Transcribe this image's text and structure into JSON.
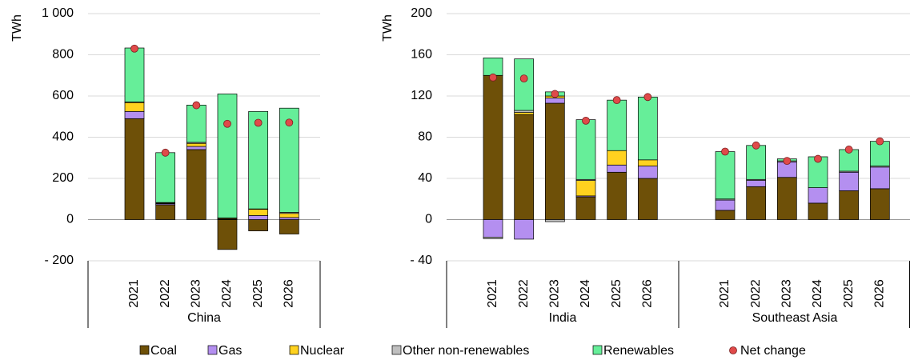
{
  "chart_data": [
    {
      "type": "bar",
      "stacked": true,
      "y_label": "TWh",
      "ylim": [
        -200,
        1000
      ],
      "yticks": [
        {
          "value": -200,
          "label": "- 200"
        },
        0,
        200,
        400,
        600,
        800,
        {
          "value": 1000,
          "label": "1 000"
        }
      ],
      "grid": true,
      "groups": [
        {
          "name": "China",
          "categories": [
            "2021",
            "2022",
            "2023",
            "2024",
            "2025",
            "2026"
          ],
          "series": [
            {
              "name": "Coal",
              "color": "#6e5008",
              "values": [
                490,
                72,
                340,
                -145,
                -55,
                -70
              ]
            },
            {
              "name": "Gas",
              "color": "#b48ff0",
              "values": [
                35,
                5,
                15,
                2,
                20,
                10
              ]
            },
            {
              "name": "Nuclear",
              "color": "#ffd21f",
              "values": [
                43,
                3,
                15,
                4,
                30,
                20
              ]
            },
            {
              "name": "Other non-renewables",
              "color": "#bfbfbf",
              "values": [
                3,
                3,
                5,
                2,
                2,
                5
              ]
            },
            {
              "name": "Renewables",
              "color": "#66ee99",
              "values": [
                262,
                242,
                181,
                602,
                473,
                506
              ]
            }
          ],
          "net_change": {
            "name": "Net change",
            "color": "#e04a4a",
            "values": [
              830,
              325,
              555,
              465,
              470,
              471
            ]
          }
        }
      ]
    },
    {
      "type": "bar",
      "stacked": true,
      "y_label": "TWh",
      "ylim": [
        -40,
        200
      ],
      "yticks": [
        {
          "value": -40,
          "label": "- 40"
        },
        0,
        40,
        80,
        120,
        160,
        200
      ],
      "grid": true,
      "groups": [
        {
          "name": "India",
          "categories": [
            "2021",
            "2022",
            "2023",
            "2024",
            "2025",
            "2026"
          ],
          "series": [
            {
              "name": "Coal",
              "color": "#6e5008",
              "values": [
                140,
                102,
                113,
                22,
                46,
                40
              ]
            },
            {
              "name": "Gas",
              "color": "#b48ff0",
              "values": [
                -17,
                -19,
                5,
                1,
                7,
                12
              ]
            },
            {
              "name": "Nuclear",
              "color": "#ffd21f",
              "values": [
                0,
                2,
                2,
                15,
                14,
                6
              ]
            },
            {
              "name": "Other non-renewables",
              "color": "#bfbfbf",
              "values": [
                -1.5,
                2,
                -2,
                1,
                0,
                0
              ]
            },
            {
              "name": "Renewables",
              "color": "#66ee99",
              "values": [
                17,
                50,
                4,
                58,
                49,
                61
              ]
            }
          ],
          "net_change": {
            "name": "Net change",
            "color": "#e04a4a",
            "values": [
              138,
              137,
              122,
              96,
              116,
              119
            ]
          }
        },
        {
          "name": "Southeast Asia",
          "categories": [
            "2021",
            "2022",
            "2023",
            "2024",
            "2025",
            "2026"
          ],
          "series": [
            {
              "name": "Coal",
              "color": "#6e5008",
              "values": [
                9,
                32,
                41,
                16,
                28,
                30
              ]
            },
            {
              "name": "Gas",
              "color": "#b48ff0",
              "values": [
                10,
                6,
                15,
                15,
                18,
                21
              ]
            },
            {
              "name": "Nuclear",
              "color": "#ffd21f",
              "values": [
                0,
                0,
                0,
                0,
                0,
                0
              ]
            },
            {
              "name": "Other non-renewables",
              "color": "#bfbfbf",
              "values": [
                1,
                1,
                1,
                0,
                1,
                1
              ]
            },
            {
              "name": "Renewables",
              "color": "#66ee99",
              "values": [
                46,
                33,
                2,
                30,
                21,
                24
              ]
            }
          ],
          "net_change": {
            "name": "Net change",
            "color": "#e04a4a",
            "values": [
              66,
              72,
              57,
              59,
              68,
              76
            ]
          }
        }
      ]
    }
  ]
}
